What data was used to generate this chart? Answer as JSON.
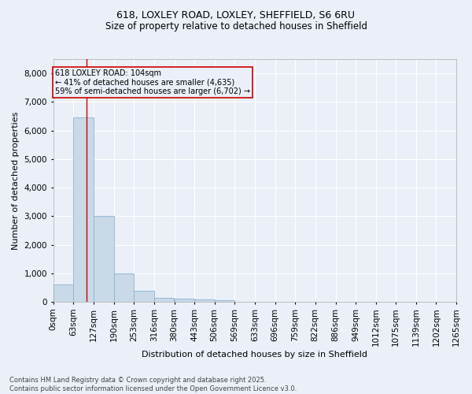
{
  "title_line1": "618, LOXLEY ROAD, LOXLEY, SHEFFIELD, S6 6RU",
  "title_line2": "Size of property relative to detached houses in Sheffield",
  "xlabel": "Distribution of detached houses by size in Sheffield",
  "ylabel": "Number of detached properties",
  "bar_color": "#c9d9e8",
  "bar_edge_color": "#8ab4d0",
  "bin_edges": [
    0,
    63,
    127,
    190,
    253,
    316,
    380,
    443,
    506,
    569,
    633,
    696,
    759,
    822,
    886,
    949,
    1012,
    1075,
    1139,
    1202,
    1265
  ],
  "bin_labels": [
    "0sqm",
    "63sqm",
    "127sqm",
    "190sqm",
    "253sqm",
    "316sqm",
    "380sqm",
    "443sqm",
    "506sqm",
    "569sqm",
    "633sqm",
    "696sqm",
    "759sqm",
    "822sqm",
    "886sqm",
    "949sqm",
    "1012sqm",
    "1075sqm",
    "1139sqm",
    "1202sqm",
    "1265sqm"
  ],
  "bar_heights": [
    600,
    6450,
    3000,
    1000,
    375,
    150,
    100,
    75,
    50,
    0,
    0,
    0,
    0,
    0,
    0,
    0,
    0,
    0,
    0,
    0
  ],
  "ylim": [
    0,
    8500
  ],
  "yticks": [
    0,
    1000,
    2000,
    3000,
    4000,
    5000,
    6000,
    7000,
    8000
  ],
  "vline_x": 104,
  "vline_color": "#cc0000",
  "annotation_text": "618 LOXLEY ROAD: 104sqm\n← 41% of detached houses are smaller (4,635)\n59% of semi-detached houses are larger (6,702) →",
  "annotation_box_color": "#cc0000",
  "background_color": "#eaeff8",
  "grid_color": "#ffffff",
  "footer_line1": "Contains HM Land Registry data © Crown copyright and database right 2025.",
  "footer_line2": "Contains public sector information licensed under the Open Government Licence v3.0."
}
